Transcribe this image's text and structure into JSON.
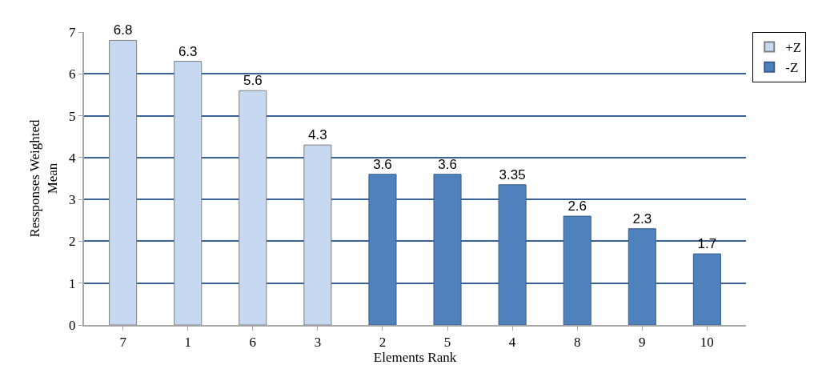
{
  "chart_data": {
    "type": "bar",
    "xlabel": "Elements Rank",
    "ylabel": "Ressponses Weighted\nMean",
    "categories": [
      "7",
      "1",
      "6",
      "3",
      "2",
      "5",
      "4",
      "8",
      "9",
      "10"
    ],
    "series": [
      {
        "name": "+Z",
        "color": "#c6d9f1",
        "values": [
          6.8,
          6.3,
          5.6,
          4.3,
          null,
          null,
          null,
          null,
          null,
          null
        ]
      },
      {
        "name": "-Z",
        "color": "#4f81bd",
        "values": [
          null,
          null,
          null,
          null,
          3.6,
          3.6,
          3.35,
          2.6,
          2.3,
          1.7
        ]
      }
    ],
    "ylim": [
      0,
      7
    ],
    "yticks": [
      0,
      1,
      2,
      3,
      4,
      5,
      6,
      7
    ],
    "grid": "y",
    "legend": "top right",
    "data_labels": true
  }
}
